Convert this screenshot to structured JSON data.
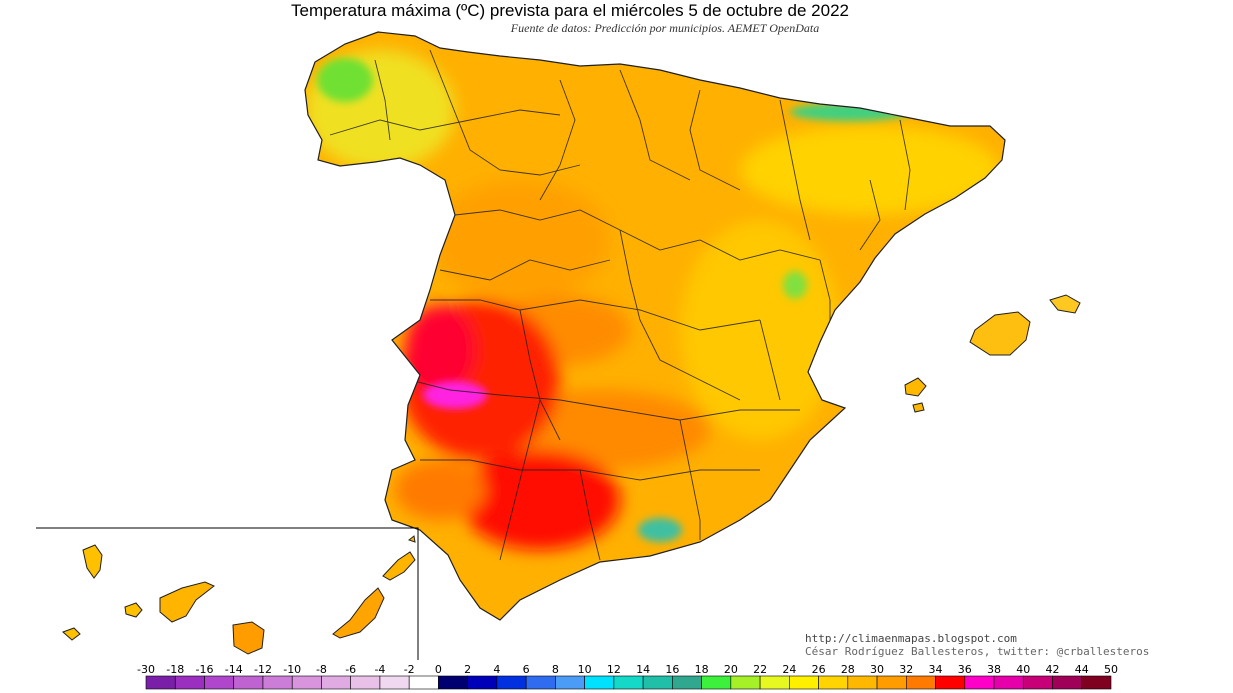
{
  "title": "Temperatura máxima (ºC) prevista para el miércoles 5 de octubre de 2022",
  "subtitle": "Fuente de datos: Predicción por municipios. AEMET OpenData",
  "credits": {
    "url": "http://climaenmapas.blogspot.com",
    "author": "César Rodríguez Ballesteros, twitter: @crballesteros"
  },
  "legend": {
    "ticks": [
      "-30",
      "-18",
      "-16",
      "-14",
      "-12",
      "-10",
      "-8",
      "-6",
      "-4",
      "-2",
      "0",
      "2",
      "4",
      "6",
      "8",
      "10",
      "12",
      "14",
      "16",
      "18",
      "20",
      "22",
      "24",
      "26",
      "28",
      "30",
      "32",
      "34",
      "36",
      "38",
      "40",
      "42",
      "44",
      "50"
    ],
    "colors": [
      "#7a1fa8",
      "#9a2fc0",
      "#b046cc",
      "#bf62d2",
      "#cc7dd8",
      "#d894dc",
      "#e0aae2",
      "#e8c0e8",
      "#f0d8f0",
      "#ffffff",
      "#000070",
      "#0000b8",
      "#0030e0",
      "#2f6cf0",
      "#4a9cf6",
      "#00e0ff",
      "#14d8c8",
      "#20c0a8",
      "#30a890",
      "#3cf03c",
      "#a6f028",
      "#e6f820",
      "#fff000",
      "#ffd400",
      "#ffb800",
      "#ff9c00",
      "#ff7a00",
      "#ff0000",
      "#ff00c8",
      "#e600aa",
      "#c80078",
      "#a00058",
      "#800020"
    ]
  },
  "regions": {
    "peninsula": "Península Ibérica (España)",
    "balearic": "Islas Baleares",
    "canary": "Islas Canarias"
  }
}
